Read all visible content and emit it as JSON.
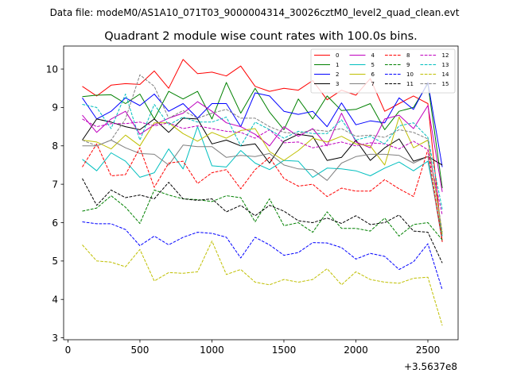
{
  "figure": {
    "suptitle": "Data file: modeM0/AS1A10_071T03_9000004314_30026cztM0_level2_quad_clean.evt"
  },
  "chart_data": {
    "type": "line",
    "title": "Quadrant 2 module wise count rates with 100.0s bins.",
    "xlabel": "",
    "ylabel": "",
    "x_offset_label": "+3.5637e8",
    "xlim": [
      -30,
      2710
    ],
    "ylim": [
      2.95,
      10.6
    ],
    "xticks": [
      0,
      500,
      1000,
      1500,
      2000,
      2500
    ],
    "yticks": [
      3,
      4,
      5,
      6,
      7,
      8,
      9,
      10
    ],
    "legend_position": "upper right",
    "legend_columns": 4,
    "x": [
      100,
      200,
      300,
      400,
      500,
      600,
      700,
      800,
      900,
      1000,
      1100,
      1200,
      1300,
      1400,
      1500,
      1600,
      1700,
      1800,
      1900,
      2000,
      2100,
      2200,
      2300,
      2400,
      2500,
      2600
    ],
    "series": [
      {
        "name": "0",
        "color": "#ff0000",
        "dash": "solid",
        "values": [
          9.55,
          9.3,
          9.58,
          9.62,
          9.6,
          9.95,
          9.5,
          10.25,
          9.88,
          9.92,
          9.82,
          10.08,
          9.55,
          9.42,
          9.5,
          9.45,
          9.7,
          9.2,
          9.45,
          9.32,
          9.75,
          8.9,
          9.1,
          9.3,
          9.1,
          5.5
        ]
      },
      {
        "name": "1",
        "color": "#008000",
        "dash": "solid",
        "values": [
          9.28,
          9.32,
          9.33,
          9.1,
          9.35,
          8.7,
          9.42,
          9.22,
          9.42,
          8.7,
          9.65,
          8.85,
          9.5,
          8.88,
          8.42,
          9.22,
          8.7,
          9.3,
          8.92,
          8.95,
          9.1,
          8.42,
          8.9,
          9.0,
          9.62,
          6.9
        ]
      },
      {
        "name": "2",
        "color": "#0000ff",
        "dash": "solid",
        "values": [
          9.25,
          8.7,
          8.9,
          9.25,
          9.05,
          9.35,
          8.9,
          9.1,
          8.72,
          9.1,
          9.1,
          8.5,
          9.38,
          9.3,
          8.9,
          8.82,
          8.9,
          8.5,
          9.12,
          8.55,
          8.65,
          8.6,
          9.25,
          8.95,
          9.65,
          7.45
        ]
      },
      {
        "name": "3",
        "color": "#000000",
        "dash": "solid",
        "values": [
          8.15,
          8.7,
          8.62,
          8.5,
          8.42,
          8.7,
          8.35,
          8.72,
          8.7,
          8.05,
          8.15,
          8.0,
          8.05,
          7.55,
          8.12,
          8.3,
          8.25,
          7.62,
          7.7,
          8.15,
          7.62,
          7.95,
          8.18,
          7.6,
          7.72,
          7.5
        ]
      },
      {
        "name": "4",
        "color": "#bf00bf",
        "dash": "solid",
        "values": [
          8.8,
          8.35,
          8.7,
          8.9,
          8.3,
          8.55,
          8.72,
          8.85,
          9.15,
          8.9,
          8.6,
          8.5,
          8.3,
          8.0,
          8.5,
          8.25,
          8.45,
          8.0,
          8.85,
          8.1,
          7.95,
          8.7,
          8.8,
          8.45,
          9.05,
          6.8
        ]
      },
      {
        "name": "5",
        "color": "#00bfbf",
        "dash": "solid",
        "values": [
          7.65,
          7.35,
          7.82,
          7.6,
          7.18,
          7.3,
          7.92,
          7.4,
          8.5,
          7.48,
          7.45,
          7.88,
          7.55,
          7.38,
          7.62,
          7.6,
          7.18,
          7.42,
          7.4,
          7.35,
          7.22,
          7.42,
          7.58,
          7.35,
          7.6,
          5.65
        ]
      },
      {
        "name": "6",
        "color": "#bfbf00",
        "dash": "solid",
        "values": [
          8.15,
          8.1,
          7.92,
          8.28,
          8.0,
          8.6,
          8.6,
          8.32,
          8.12,
          8.35,
          8.2,
          8.4,
          8.45,
          7.85,
          7.62,
          7.88,
          8.2,
          8.1,
          8.25,
          8.05,
          8.0,
          7.5,
          8.75,
          7.95,
          8.15,
          5.7
        ]
      },
      {
        "name": "7",
        "color": "#808080",
        "dash": "solid",
        "values": [
          8.0,
          8.0,
          8.15,
          7.95,
          7.8,
          7.78,
          7.5,
          8.02,
          7.98,
          7.98,
          7.7,
          7.75,
          7.72,
          7.8,
          7.5,
          7.4,
          7.38,
          7.1,
          7.55,
          7.72,
          7.78,
          7.78,
          7.75,
          7.55,
          7.72,
          5.5
        ]
      },
      {
        "name": "8",
        "color": "#ff0000",
        "dash": "dashed",
        "values": [
          7.45,
          8.05,
          7.22,
          7.25,
          7.95,
          6.92,
          7.55,
          7.6,
          7.02,
          7.3,
          7.38,
          6.88,
          7.38,
          7.7,
          7.15,
          6.95,
          7.0,
          6.68,
          6.9,
          6.82,
          6.82,
          7.12,
          6.88,
          6.68,
          7.9,
          5.5
        ]
      },
      {
        "name": "9",
        "color": "#008000",
        "dash": "dashed",
        "values": [
          6.3,
          6.38,
          6.7,
          6.4,
          5.98,
          6.85,
          6.72,
          6.62,
          6.6,
          6.55,
          6.7,
          6.65,
          6.02,
          6.62,
          5.92,
          6.0,
          5.75,
          6.28,
          5.85,
          5.85,
          5.78,
          6.12,
          5.65,
          5.95,
          6.0,
          5.55
        ]
      },
      {
        "name": "10",
        "color": "#0000ff",
        "dash": "dashed",
        "values": [
          6.02,
          5.97,
          5.97,
          5.82,
          5.4,
          5.65,
          5.42,
          5.62,
          5.75,
          5.72,
          5.62,
          5.08,
          5.62,
          5.42,
          5.15,
          5.22,
          5.48,
          5.47,
          5.35,
          5.05,
          5.2,
          5.12,
          4.78,
          4.98,
          5.45,
          4.25
        ]
      },
      {
        "name": "11",
        "color": "#000000",
        "dash": "dashed",
        "values": [
          7.15,
          6.45,
          6.85,
          6.65,
          6.72,
          6.62,
          7.05,
          6.62,
          6.58,
          6.62,
          6.28,
          6.45,
          6.18,
          6.45,
          6.3,
          6.05,
          6.0,
          6.12,
          5.98,
          6.18,
          5.95,
          6.0,
          6.2,
          5.78,
          5.75,
          4.95
        ]
      },
      {
        "name": "12",
        "color": "#bf00bf",
        "dash": "dashed",
        "values": [
          8.7,
          8.5,
          8.58,
          8.58,
          8.62,
          8.52,
          8.6,
          8.45,
          8.52,
          8.45,
          8.38,
          8.35,
          8.2,
          8.42,
          8.08,
          8.1,
          7.95,
          8.02,
          8.1,
          8.0,
          8.08,
          8.05,
          7.92,
          8.12,
          7.9,
          6.2
        ]
      },
      {
        "name": "13",
        "color": "#00bfbf",
        "dash": "dashed",
        "values": [
          9.08,
          9.0,
          8.45,
          9.35,
          8.15,
          9.08,
          8.55,
          8.75,
          8.62,
          8.62,
          8.75,
          8.0,
          8.62,
          8.42,
          8.2,
          8.38,
          8.32,
          8.32,
          8.68,
          8.15,
          8.25,
          8.05,
          8.52,
          8.6,
          8.22,
          6.35
        ]
      },
      {
        "name": "14",
        "color": "#bfbf00",
        "dash": "dashed",
        "values": [
          5.42,
          5.0,
          4.97,
          4.85,
          5.3,
          4.48,
          4.7,
          4.68,
          4.72,
          5.52,
          4.65,
          4.78,
          4.45,
          4.38,
          4.52,
          4.45,
          4.52,
          4.8,
          4.38,
          4.72,
          4.52,
          4.45,
          4.42,
          4.55,
          4.58,
          3.32
        ]
      },
      {
        "name": "15",
        "color": "#808080",
        "dash": "dashed",
        "values": [
          8.15,
          8.0,
          8.15,
          8.7,
          9.85,
          9.55,
          8.72,
          8.92,
          8.72,
          8.85,
          8.95,
          8.72,
          8.72,
          8.5,
          8.35,
          8.32,
          8.42,
          8.38,
          8.45,
          8.25,
          8.28,
          8.22,
          8.42,
          8.35,
          8.18,
          5.75
        ]
      }
    ]
  }
}
